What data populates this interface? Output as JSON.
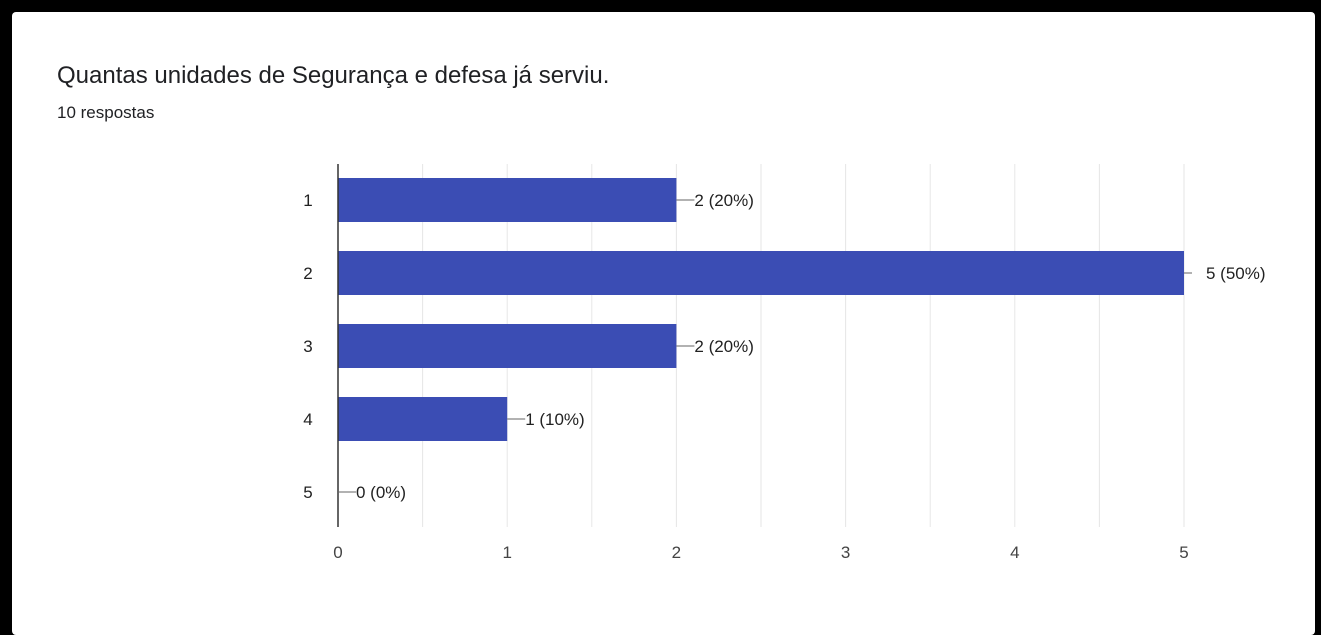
{
  "header": {
    "title": "Quantas unidades de Segurança e defesa já serviu.",
    "responses": "10 respostas"
  },
  "colors": {
    "bar": "#3b4db4",
    "grid": "#e6e6e6",
    "axis": "#333333",
    "leader": "#666666"
  },
  "chart_data": {
    "type": "bar",
    "orientation": "horizontal",
    "categories": [
      "1",
      "2",
      "3",
      "4",
      "5"
    ],
    "values": [
      2,
      5,
      2,
      1,
      0
    ],
    "data_labels": [
      "2 (20%)",
      "5 (50%)",
      "2 (20%)",
      "1 (10%)",
      "0 (0%)"
    ],
    "x_ticks": [
      "0",
      "1",
      "2",
      "3",
      "4",
      "5"
    ],
    "xlim": [
      0,
      5
    ],
    "grid": true,
    "legend": "none"
  }
}
